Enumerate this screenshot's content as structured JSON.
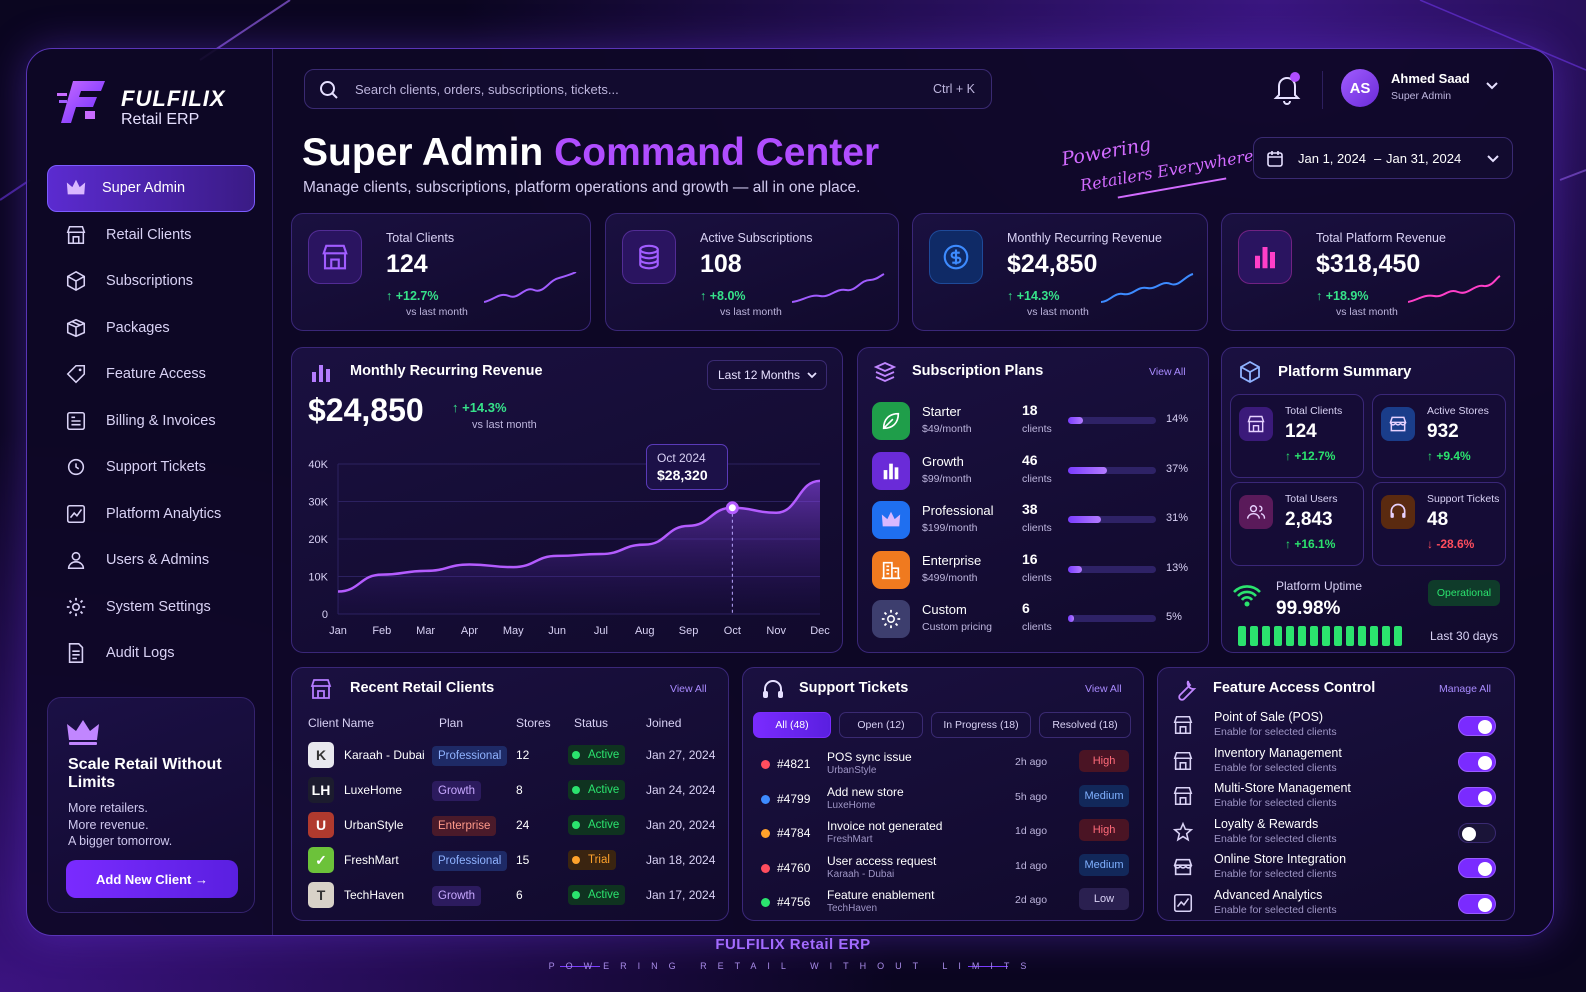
{
  "brand": {
    "name": "FULFILIX",
    "product": "Retail ERP"
  },
  "nav": {
    "items": [
      {
        "label": "Super Admin",
        "icon": "crown-icon"
      },
      {
        "label": "Retail Clients",
        "icon": "store-icon"
      },
      {
        "label": "Subscriptions",
        "icon": "box-icon"
      },
      {
        "label": "Packages",
        "icon": "package-icon"
      },
      {
        "label": "Feature Access",
        "icon": "tag-icon"
      },
      {
        "label": "Billing & Invoices",
        "icon": "invoice-icon"
      },
      {
        "label": "Support Tickets",
        "icon": "ticket-icon"
      },
      {
        "label": "Platform Analytics",
        "icon": "analytics-icon"
      },
      {
        "label": "Users & Admins",
        "icon": "user-icon"
      },
      {
        "label": "System Settings",
        "icon": "gear-icon"
      },
      {
        "label": "Audit Logs",
        "icon": "document-icon"
      }
    ]
  },
  "promo": {
    "title": "Scale Retail Without Limits",
    "line1": "More retailers.",
    "line2": "More revenue.",
    "line3": "A bigger tomorrow.",
    "button": "Add New Client →"
  },
  "search": {
    "placeholder": "Search clients, orders, subscriptions, tickets...",
    "shortcut": "Ctrl + K"
  },
  "user": {
    "initials": "AS",
    "name": "Ahmed Saad",
    "role": "Super Admin"
  },
  "header": {
    "title_a": "Super Admin",
    "title_b": "Command Center",
    "subtitle": "Manage clients, subscriptions, platform operations and growth — all in one place.",
    "tagline1": "Powering",
    "tagline2": "Retailers Everywhere",
    "date_from": "Jan 1, 2024",
    "date_sep": "–",
    "date_to": "Jan 31, 2024"
  },
  "kpis": [
    {
      "label": "Total Clients",
      "value": "124",
      "change": "↑ +12.7%",
      "sub": "vs last month",
      "icon": "store-icon",
      "color": "#a15cff"
    },
    {
      "label": "Active Subscriptions",
      "value": "108",
      "change": "↑ +8.0%",
      "sub": "vs last month",
      "icon": "coins-icon",
      "color": "#a15cff"
    },
    {
      "label": "Monthly Recurring Revenue",
      "value": "$24,850",
      "change": "↑ +14.3%",
      "sub": "vs last month",
      "icon": "dollar-icon",
      "color": "#3d8bff"
    },
    {
      "label": "Total Platform Revenue",
      "value": "$318,450",
      "change": "↑ +18.9%",
      "sub": "vs last month",
      "icon": "bar-chart-icon",
      "color": "#ff3fc8"
    }
  ],
  "mrr": {
    "title": "Monthly Recurring Revenue",
    "range": "Last 12 Months",
    "value": "$24,850",
    "change": "↑ +14.3%",
    "sub": "vs last month",
    "tooltip_month": "Oct 2024",
    "tooltip_value": "$28,320"
  },
  "chart_data": {
    "type": "area",
    "categories": [
      "Jan",
      "Feb",
      "Mar",
      "Apr",
      "May",
      "Jun",
      "Jul",
      "Aug",
      "Sep",
      "Oct",
      "Nov",
      "Dec"
    ],
    "values": [
      6000,
      10500,
      11500,
      13200,
      12500,
      15500,
      16000,
      18500,
      23500,
      28320,
      27000,
      35500
    ],
    "ylim": [
      0,
      40000
    ],
    "yticks": [
      "0",
      "10K",
      "20K",
      "30K",
      "40K"
    ],
    "highlight_index": 9,
    "grid": true
  },
  "plans": {
    "title": "Subscription Plans",
    "view_all": "View All",
    "items": [
      {
        "name": "Starter",
        "price": "$49/month",
        "count": "18",
        "unit": "clients",
        "pct": "14%",
        "share": 0.14,
        "color": "#1f9e4a",
        "icon": "leaf-icon"
      },
      {
        "name": "Growth",
        "price": "$99/month",
        "count": "46",
        "unit": "clients",
        "pct": "37%",
        "share": 0.37,
        "color": "#6a2bd8",
        "icon": "bar-chart-icon"
      },
      {
        "name": "Professional",
        "price": "$199/month",
        "count": "38",
        "unit": "clients",
        "pct": "31%",
        "share": 0.31,
        "color": "#1f6ff0",
        "icon": "crown-icon"
      },
      {
        "name": "Enterprise",
        "price": "$499/month",
        "count": "16",
        "unit": "clients",
        "pct": "13%",
        "share": 0.13,
        "color": "#f07a1f",
        "icon": "building-icon"
      },
      {
        "name": "Custom",
        "price": "Custom pricing",
        "count": "6",
        "unit": "clients",
        "pct": "5%",
        "share": 0.05,
        "color": "#3d3e6e",
        "icon": "gear-icon"
      }
    ]
  },
  "summary": {
    "title": "Platform Summary",
    "tiles": [
      {
        "label": "Total Clients",
        "value": "124",
        "change": "↑ +12.7%",
        "color": "#2be36e",
        "icon": "store-icon",
        "bg": "#3b1a7a"
      },
      {
        "label": "Active Stores",
        "value": "932",
        "change": "↑ +9.4%",
        "color": "#2be36e",
        "icon": "shop-icon",
        "bg": "#1a3d8a"
      },
      {
        "label": "Total Users",
        "value": "2,843",
        "change": "↑ +16.1%",
        "color": "#2be36e",
        "icon": "users-icon",
        "bg": "#5a1a5a"
      },
      {
        "label": "Support Tickets",
        "value": "48",
        "change": "↓ -28.6%",
        "color": "#ff4d5e",
        "icon": "headset-icon",
        "bg": "#5a2a10"
      }
    ],
    "uptime_label": "Platform Uptime",
    "uptime_value": "99.98%",
    "status": "Operational",
    "period": "Last 30 days"
  },
  "clients": {
    "title": "Recent Retail Clients",
    "view_all": "View All",
    "headers": [
      "Client Name",
      "Plan",
      "Stores",
      "Status",
      "Joined"
    ],
    "rows": [
      {
        "initial": "K",
        "name": "Karaah - Dubai",
        "plan": "Professional",
        "stores": "12",
        "status": "Active",
        "joined": "Jan 27, 2024",
        "avbg": "#e8e8ee",
        "avfg": "#333",
        "plan_color": "#8fb2ff",
        "plan_bg": "#1e2a66"
      },
      {
        "initial": "LH",
        "name": "LuxeHome",
        "plan": "Growth",
        "stores": "8",
        "status": "Active",
        "joined": "Jan 24, 2024",
        "avbg": "#1c1c2e",
        "avfg": "#fff",
        "plan_color": "#c7a8ff",
        "plan_bg": "#2c1b5e"
      },
      {
        "initial": "U",
        "name": "UrbanStyle",
        "plan": "Enterprise",
        "stores": "24",
        "status": "Active",
        "joined": "Jan 20, 2024",
        "avbg": "#b03a2e",
        "avfg": "#fff",
        "plan_color": "#ff9a8a",
        "plan_bg": "#4a1a2a"
      },
      {
        "initial": "✓",
        "name": "FreshMart",
        "plan": "Professional",
        "stores": "15",
        "status": "Trial",
        "joined": "Jan 18, 2024",
        "avbg": "#6cc23a",
        "avfg": "#fff",
        "plan_color": "#8fb2ff",
        "plan_bg": "#1e2a66"
      },
      {
        "initial": "T",
        "name": "TechHaven",
        "plan": "Growth",
        "stores": "6",
        "status": "Active",
        "joined": "Jan 17, 2024",
        "avbg": "#d8d2c8",
        "avfg": "#333",
        "plan_color": "#c7a8ff",
        "plan_bg": "#2c1b5e"
      }
    ]
  },
  "tickets": {
    "title": "Support Tickets",
    "view_all": "View All",
    "tabs": [
      "All (48)",
      "Open (12)",
      "In Progress (18)",
      "Resolved (18)"
    ],
    "rows": [
      {
        "id": "#4821",
        "title": "POS sync issue",
        "client": "UrbanStyle",
        "age": "2h ago",
        "priority": "High",
        "dot": "#ff4d5e"
      },
      {
        "id": "#4799",
        "title": "Add new store",
        "client": "LuxeHome",
        "age": "5h ago",
        "priority": "Medium",
        "dot": "#3d8bff"
      },
      {
        "id": "#4784",
        "title": "Invoice not generated",
        "client": "FreshMart",
        "age": "1d ago",
        "priority": "High",
        "dot": "#ffa22b"
      },
      {
        "id": "#4760",
        "title": "User access request",
        "client": "Karaah - Dubai",
        "age": "1d ago",
        "priority": "Medium",
        "dot": "#ff4d5e"
      },
      {
        "id": "#4756",
        "title": "Feature enablement",
        "client": "TechHaven",
        "age": "2d ago",
        "priority": "Low",
        "dot": "#2be36e"
      }
    ]
  },
  "features": {
    "title": "Feature Access Control",
    "manage": "Manage All",
    "items": [
      {
        "name": "Point of Sale (POS)",
        "desc": "Enable for selected clients",
        "on": true,
        "icon": "store-icon"
      },
      {
        "name": "Inventory Management",
        "desc": "Enable for selected clients",
        "on": true,
        "icon": "store-icon"
      },
      {
        "name": "Multi-Store Management",
        "desc": "Enable for selected clients",
        "on": true,
        "icon": "store-icon"
      },
      {
        "name": "Loyalty & Rewards",
        "desc": "Enable for selected clients",
        "on": false,
        "icon": "star-icon"
      },
      {
        "name": "Online Store Integration",
        "desc": "Enable for selected clients",
        "on": true,
        "icon": "shop-icon"
      },
      {
        "name": "Advanced Analytics",
        "desc": "Enable for selected clients",
        "on": true,
        "icon": "analytics-icon"
      }
    ]
  },
  "footer": {
    "title": "FULFILIX Retail ERP",
    "sub": "POWERING RETAIL WITHOUT LIMITS"
  }
}
